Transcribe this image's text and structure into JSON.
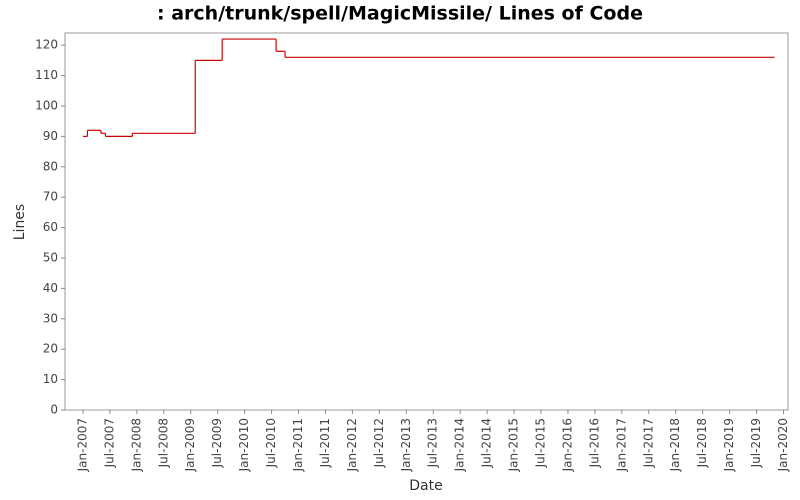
{
  "chart_data": {
    "type": "step",
    "title": ": arch/trunk/spell/MagicMissile/ Lines of Code",
    "x_label": "Date",
    "y_label": "Lines",
    "series": [
      {
        "name": "Lines",
        "color": "#cc0000",
        "x": [
          "2007-01",
          "2007-02",
          "2007-05",
          "2007-06",
          "2007-12",
          "2009-02",
          "2009-08",
          "2010-08",
          "2010-10",
          "2019-11"
        ],
        "values": [
          90,
          92,
          91,
          90,
          91,
          115,
          122,
          118,
          116,
          116
        ]
      }
    ],
    "xlim": [
      "2006-09",
      "2020-02"
    ],
    "xticks": [
      {
        "value": "2007-01",
        "label": "Jan-2007"
      },
      {
        "value": "2007-07",
        "label": "Jul-2007"
      },
      {
        "value": "2008-01",
        "label": "Jan-2008"
      },
      {
        "value": "2008-07",
        "label": "Jul-2008"
      },
      {
        "value": "2009-01",
        "label": "Jan-2009"
      },
      {
        "value": "2009-07",
        "label": "Jul-2009"
      },
      {
        "value": "2010-01",
        "label": "Jan-2010"
      },
      {
        "value": "2010-07",
        "label": "Jul-2010"
      },
      {
        "value": "2011-01",
        "label": "Jan-2011"
      },
      {
        "value": "2011-07",
        "label": "Jul-2011"
      },
      {
        "value": "2012-01",
        "label": "Jan-2012"
      },
      {
        "value": "2012-07",
        "label": "Jul-2012"
      },
      {
        "value": "2013-01",
        "label": "Jan-2013"
      },
      {
        "value": "2013-07",
        "label": "Jul-2013"
      },
      {
        "value": "2014-01",
        "label": "Jan-2014"
      },
      {
        "value": "2014-07",
        "label": "Jul-2014"
      },
      {
        "value": "2015-01",
        "label": "Jan-2015"
      },
      {
        "value": "2015-07",
        "label": "Jul-2015"
      },
      {
        "value": "2016-01",
        "label": "Jan-2016"
      },
      {
        "value": "2016-07",
        "label": "Jul-2016"
      },
      {
        "value": "2017-01",
        "label": "Jan-2017"
      },
      {
        "value": "2017-07",
        "label": "Jul-2017"
      },
      {
        "value": "2018-01",
        "label": "Jan-2018"
      },
      {
        "value": "2018-07",
        "label": "Jul-2018"
      },
      {
        "value": "2019-01",
        "label": "Jan-2019"
      },
      {
        "value": "2019-07",
        "label": "Jul-2019"
      },
      {
        "value": "2020-01",
        "label": "Jan-2020"
      }
    ],
    "ylim": [
      0,
      124
    ],
    "yticks": [
      0,
      10,
      20,
      30,
      40,
      50,
      60,
      70,
      80,
      90,
      100,
      110,
      120
    ],
    "grid": false
  }
}
